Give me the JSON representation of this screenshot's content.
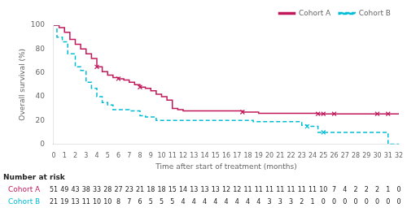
{
  "chart_data": {
    "type": "step",
    "xlabel": "Time after start of treatment (months)",
    "ylabel": "Overall survival (%)",
    "xlim": [
      0,
      32
    ],
    "ylim": [
      0,
      100
    ],
    "xticks": [
      0,
      1,
      2,
      3,
      4,
      5,
      6,
      7,
      8,
      9,
      10,
      11,
      12,
      13,
      14,
      15,
      16,
      17,
      18,
      19,
      20,
      21,
      22,
      23,
      24,
      25,
      26,
      27,
      28,
      29,
      30,
      31,
      32
    ],
    "yticks": [
      0,
      20,
      40,
      60,
      80,
      100
    ],
    "grid": false,
    "legend": "upper right",
    "at_risk_label": "Number at risk",
    "series": [
      {
        "name": "Cohort A",
        "color": "#c0185a",
        "line_style": "solid",
        "x": [
          0,
          0.5,
          1,
          1.5,
          2,
          2.5,
          3,
          3.5,
          4,
          4.5,
          5,
          5.5,
          6,
          6.5,
          7,
          7.5,
          8,
          8.5,
          9,
          9.5,
          10,
          10.5,
          11,
          11.5,
          12,
          12.5,
          13,
          14,
          15,
          16,
          17,
          17.5,
          18,
          19,
          20,
          21,
          22,
          23,
          24,
          24.5,
          25,
          26,
          27,
          28,
          29,
          30,
          31,
          32
        ],
        "values": [
          100,
          98,
          94,
          88,
          84,
          80,
          76,
          72,
          65,
          61,
          58,
          56,
          55,
          54,
          52,
          50,
          48,
          47,
          45,
          42,
          40,
          37,
          30,
          29,
          28,
          28,
          28,
          28,
          28,
          28,
          28,
          27,
          27,
          26,
          26,
          26,
          26,
          26,
          26,
          25.5,
          25.5,
          25.5,
          25.5,
          25.5,
          25.5,
          25.5,
          25.5,
          25.5
        ],
        "censor_x": [
          4.0,
          6.0,
          8.0,
          17.5,
          24.5,
          25.0,
          26.0,
          30.0,
          31.0
        ],
        "censor_values": [
          65,
          55,
          48,
          27,
          25.5,
          25.5,
          25.5,
          25.5,
          25.5
        ],
        "at_risk_x": [
          0,
          1,
          2,
          3,
          4,
          5,
          6,
          7,
          8,
          9,
          10,
          11,
          12,
          13,
          14,
          15,
          16,
          17,
          18,
          19,
          20,
          21,
          22,
          23,
          24,
          25,
          26,
          27,
          28,
          29,
          30,
          31,
          32
        ],
        "at_risk": [
          51,
          49,
          43,
          38,
          33,
          28,
          27,
          23,
          21,
          18,
          18,
          15,
          14,
          13,
          13,
          13,
          12,
          12,
          11,
          11,
          11,
          11,
          11,
          11,
          11,
          10,
          7,
          4,
          2,
          2,
          2,
          1,
          0
        ]
      },
      {
        "name": "Cohort B",
        "color": "#00bcd4",
        "line_style": "dashed",
        "x": [
          0,
          0.3,
          0.8,
          1.3,
          2,
          2.5,
          3,
          3.5,
          4,
          4.5,
          5,
          5.5,
          6,
          7,
          7.5,
          8,
          8.5,
          9,
          9.5,
          10,
          11,
          12,
          13,
          14,
          15,
          16,
          17,
          18,
          18.5,
          19,
          20,
          21,
          22,
          23,
          23.5,
          24,
          24.5,
          25,
          26,
          27,
          28,
          29,
          30,
          31,
          32
        ],
        "values": [
          100,
          90,
          86,
          76,
          65,
          62,
          52,
          47,
          40,
          35,
          33,
          29,
          29,
          28,
          28,
          24,
          23,
          23,
          20,
          20,
          20,
          20,
          20,
          20,
          20,
          20,
          20,
          20,
          19,
          19,
          19,
          19,
          19,
          16,
          15,
          15,
          10,
          10,
          10,
          10,
          10,
          10,
          10,
          0,
          0
        ],
        "censor_x": [
          23.5,
          25.0
        ],
        "censor_values": [
          15,
          10
        ],
        "at_risk_x": [
          0,
          1,
          2,
          3,
          4,
          5,
          6,
          7,
          8,
          9,
          10,
          11,
          12,
          13,
          14,
          15,
          16,
          17,
          18,
          19,
          20,
          21,
          22,
          23,
          24,
          25,
          26,
          27,
          28,
          29,
          30,
          31,
          32
        ],
        "at_risk": [
          21,
          19,
          13,
          11,
          10,
          10,
          8,
          7,
          6,
          5,
          5,
          5,
          4,
          4,
          4,
          4,
          4,
          4,
          4,
          4,
          3,
          3,
          3,
          2,
          1,
          0,
          0,
          0,
          0,
          0,
          0,
          0,
          0
        ]
      }
    ]
  }
}
